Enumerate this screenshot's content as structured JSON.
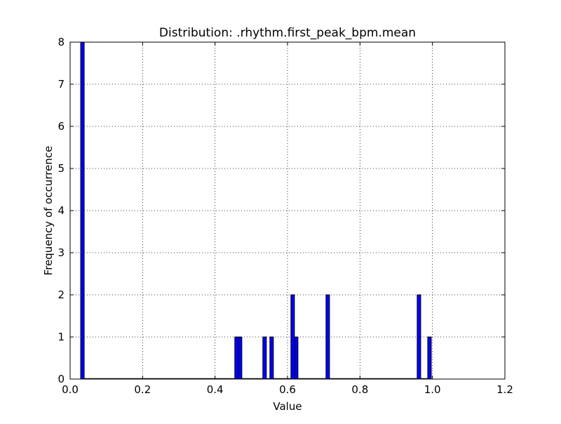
{
  "chart_data": {
    "type": "bar",
    "title": "Distribution: .rhythm.first_peak_bpm.mean",
    "xlabel": "Value",
    "ylabel": "Frequency of occurrence",
    "xlim": [
      0.0,
      1.2
    ],
    "ylim": [
      0,
      8
    ],
    "xticks": [
      "0.0",
      "0.2",
      "0.4",
      "0.6",
      "0.8",
      "1.0",
      "1.2"
    ],
    "yticks": [
      "0",
      "1",
      "2",
      "3",
      "4",
      "5",
      "6",
      "7",
      "8"
    ],
    "grid": true,
    "bar_color": "#0000ff",
    "bar_edge_color": "#000000",
    "bin_width": 0.0097,
    "bins": [
      {
        "x": 0.0291,
        "value": 8
      },
      {
        "x": 0.4545,
        "value": 1
      },
      {
        "x": 0.4642,
        "value": 1
      },
      {
        "x": 0.5319,
        "value": 1
      },
      {
        "x": 0.5513,
        "value": 1
      },
      {
        "x": 0.6094,
        "value": 2
      },
      {
        "x": 0.6191,
        "value": 1
      },
      {
        "x": 0.7062,
        "value": 2
      },
      {
        "x": 0.9579,
        "value": 2
      },
      {
        "x": 0.987,
        "value": 1
      }
    ]
  }
}
